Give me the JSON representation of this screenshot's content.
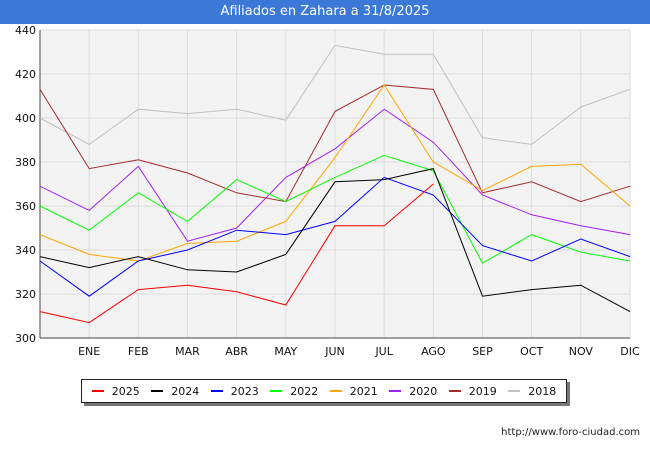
{
  "title": "Afiliados en Zahara a 31/8/2025",
  "source": "http://www.foro-ciudad.com",
  "chart_data": {
    "type": "line",
    "title": "Afiliados en Zahara a 31/8/2025",
    "categories": [
      "DIC",
      "ENE",
      "FEB",
      "MAR",
      "ABR",
      "MAY",
      "JUN",
      "JUL",
      "AGO",
      "SEP",
      "OCT",
      "NOV",
      "DIC"
    ],
    "x_tick_labels": [
      "",
      "ENE",
      "FEB",
      "MAR",
      "ABR",
      "MAY",
      "JUN",
      "JUL",
      "AGO",
      "SEP",
      "OCT",
      "NOV",
      "DIC"
    ],
    "ylim": [
      300,
      440
    ],
    "yticks": [
      300,
      320,
      340,
      360,
      380,
      400,
      420,
      440
    ],
    "grid": true,
    "legend_position": "bottom",
    "series": [
      {
        "name": "2025",
        "color": "#ff0000",
        "values": [
          312,
          307,
          322,
          324,
          321,
          315,
          351,
          351,
          370,
          null,
          null,
          null,
          null
        ]
      },
      {
        "name": "2024",
        "color": "#000000",
        "values": [
          337,
          332,
          337,
          331,
          330,
          338,
          371,
          372,
          377,
          319,
          322,
          324,
          312
        ]
      },
      {
        "name": "2023",
        "color": "#0000ff",
        "values": [
          335,
          319,
          335,
          340,
          349,
          347,
          353,
          373,
          365,
          342,
          335,
          345,
          337
        ]
      },
      {
        "name": "2022",
        "color": "#00ff00",
        "values": [
          360,
          349,
          366,
          353,
          372,
          362,
          373,
          383,
          376,
          334,
          347,
          339,
          335
        ]
      },
      {
        "name": "2021",
        "color": "#ffa500",
        "values": [
          347,
          338,
          335,
          343,
          344,
          353,
          382,
          415,
          380,
          367,
          378,
          379,
          360
        ]
      },
      {
        "name": "2020",
        "color": "#a020f0",
        "values": [
          369,
          358,
          378,
          344,
          350,
          373,
          386,
          404,
          389,
          365,
          356,
          351,
          347
        ]
      },
      {
        "name": "2019",
        "color": "#a52a2a",
        "values": [
          413,
          377,
          381,
          375,
          366,
          362,
          403,
          415,
          413,
          366,
          371,
          362,
          369
        ]
      },
      {
        "name": "2018",
        "color": "#c0c0c0",
        "values": [
          400,
          388,
          404,
          402,
          404,
          399,
          433,
          429,
          429,
          391,
          388,
          405,
          413
        ]
      }
    ]
  }
}
